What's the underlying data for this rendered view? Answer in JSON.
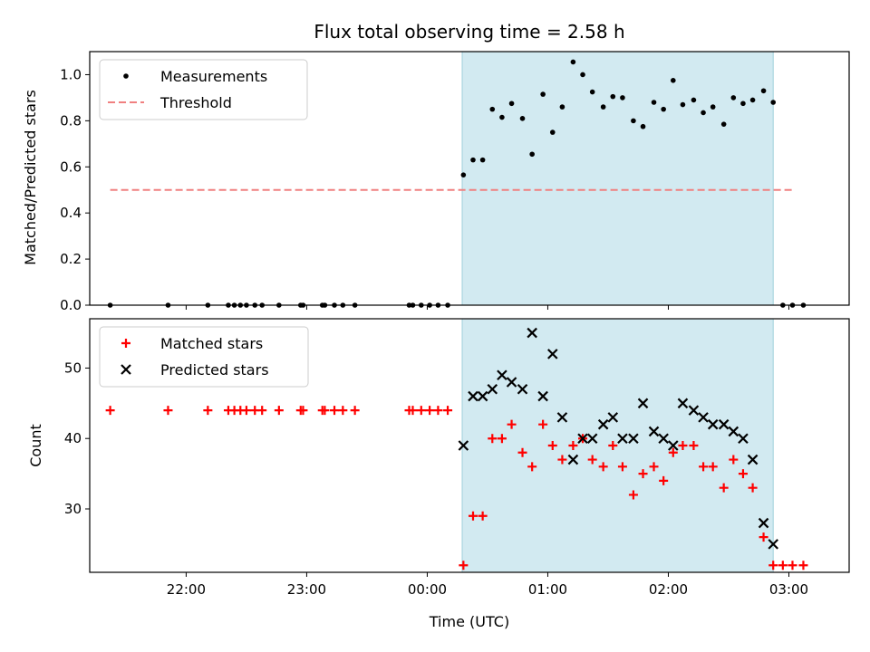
{
  "chart_data": [
    {
      "type": "scatter",
      "title": "Flux total observing time = 2.58 h",
      "xlabel": "",
      "ylabel": "Matched/Predicted stars",
      "x_unit": "hours after 00:00 UTC",
      "xlim": [
        -2.8,
        3.5
      ],
      "ylim": [
        0,
        1.1
      ],
      "yticks": [
        0.0,
        0.2,
        0.4,
        0.6,
        0.8,
        1.0
      ],
      "ytick_labels": [
        "0.0",
        "0.2",
        "0.4",
        "0.6",
        "0.8",
        "1.0"
      ],
      "shaded_span": {
        "x0": 0.29,
        "x1": 2.87,
        "color": "#add8e6"
      },
      "legend_position": "upper-left",
      "series": [
        {
          "name": "Measurements",
          "marker": "dot",
          "color": "#000000",
          "x": [
            -2.63,
            -2.15,
            -1.82,
            -1.65,
            -1.6,
            -1.55,
            -1.5,
            -1.43,
            -1.37,
            -1.23,
            -1.05,
            -1.03,
            -0.87,
            -0.85,
            -0.77,
            -0.7,
            -0.6,
            -0.15,
            -0.12,
            -0.05,
            0.02,
            0.09,
            0.17,
            0.3,
            0.38,
            0.46,
            0.54,
            0.62,
            0.7,
            0.79,
            0.87,
            0.96,
            1.04,
            1.12,
            1.21,
            1.29,
            1.37,
            1.46,
            1.54,
            1.62,
            1.71,
            1.79,
            1.88,
            1.96,
            2.04,
            2.12,
            2.21,
            2.29,
            2.37,
            2.46,
            2.54,
            2.62,
            2.7,
            2.79,
            2.87,
            2.95,
            3.03,
            3.12
          ],
          "y": [
            0,
            0,
            0,
            0,
            0,
            0,
            0,
            0,
            0,
            0,
            0,
            0,
            0,
            0,
            0,
            0,
            0,
            0,
            0,
            0,
            0,
            0,
            0,
            0.565,
            0.63,
            0.63,
            0.85,
            0.815,
            0.875,
            0.81,
            0.655,
            0.915,
            0.75,
            0.86,
            1.055,
            1.0,
            0.925,
            0.86,
            0.905,
            0.9,
            0.8,
            0.775,
            0.88,
            0.85,
            0.975,
            0.87,
            0.89,
            0.835,
            0.86,
            0.785,
            0.9,
            0.875,
            0.89,
            0.93,
            0.88,
            0,
            0,
            0
          ]
        },
        {
          "name": "Threshold",
          "marker": "dashed-line",
          "color": "#f08080",
          "x": [
            -2.63,
            3.05
          ],
          "y": [
            0.5,
            0.5
          ]
        }
      ]
    },
    {
      "type": "scatter",
      "title": "",
      "xlabel": "Time (UTC)",
      "ylabel": "Count",
      "x_unit": "hours after 00:00 UTC",
      "xlim": [
        -2.8,
        3.5
      ],
      "ylim": [
        21,
        57
      ],
      "xticks": [
        -2,
        -1,
        0,
        1,
        2,
        3
      ],
      "xtick_labels": [
        "22:00",
        "23:00",
        "00:00",
        "01:00",
        "02:00",
        "03:00"
      ],
      "yticks": [
        30,
        40,
        50
      ],
      "ytick_labels": [
        "30",
        "40",
        "50"
      ],
      "shaded_span": {
        "x0": 0.29,
        "x1": 2.87,
        "color": "#add8e6"
      },
      "legend_position": "upper-left",
      "series": [
        {
          "name": "Matched stars",
          "marker": "plus",
          "color": "#ff0000",
          "x": [
            -2.63,
            -2.15,
            -1.82,
            -1.65,
            -1.6,
            -1.55,
            -1.5,
            -1.43,
            -1.37,
            -1.23,
            -1.05,
            -1.03,
            -0.87,
            -0.85,
            -0.77,
            -0.7,
            -0.6,
            -0.15,
            -0.12,
            -0.05,
            0.02,
            0.09,
            0.17,
            0.3,
            0.38,
            0.46,
            0.54,
            0.62,
            0.7,
            0.79,
            0.87,
            0.96,
            1.04,
            1.12,
            1.21,
            1.29,
            1.37,
            1.46,
            1.54,
            1.62,
            1.71,
            1.79,
            1.88,
            1.96,
            2.04,
            2.12,
            2.21,
            2.29,
            2.37,
            2.46,
            2.54,
            2.62,
            2.7,
            2.79,
            2.87,
            2.95,
            3.03,
            3.12
          ],
          "y": [
            44,
            44,
            44,
            44,
            44,
            44,
            44,
            44,
            44,
            44,
            44,
            44,
            44,
            44,
            44,
            44,
            44,
            44,
            44,
            44,
            44,
            44,
            44,
            22,
            29,
            29,
            40,
            40,
            42,
            38,
            36,
            42,
            39,
            37,
            39,
            40,
            37,
            36,
            39,
            36,
            32,
            35,
            36,
            34,
            38,
            39,
            39,
            36,
            36,
            33,
            37,
            35,
            33,
            26,
            22,
            22,
            22,
            22
          ]
        },
        {
          "name": "Predicted stars",
          "marker": "x",
          "color": "#000000",
          "x": [
            0.3,
            0.38,
            0.46,
            0.54,
            0.62,
            0.7,
            0.79,
            0.87,
            0.96,
            1.04,
            1.12,
            1.21,
            1.29,
            1.37,
            1.46,
            1.54,
            1.62,
            1.71,
            1.79,
            1.88,
            1.96,
            2.04,
            2.12,
            2.21,
            2.29,
            2.37,
            2.46,
            2.54,
            2.62,
            2.7,
            2.79,
            2.87
          ],
          "y": [
            39,
            46,
            46,
            47,
            49,
            48,
            47,
            55,
            46,
            52,
            43,
            37,
            40,
            40,
            42,
            43,
            40,
            40,
            45,
            41,
            40,
            39,
            45,
            44,
            43,
            42,
            42,
            41,
            40,
            37,
            28,
            25
          ]
        }
      ]
    }
  ]
}
